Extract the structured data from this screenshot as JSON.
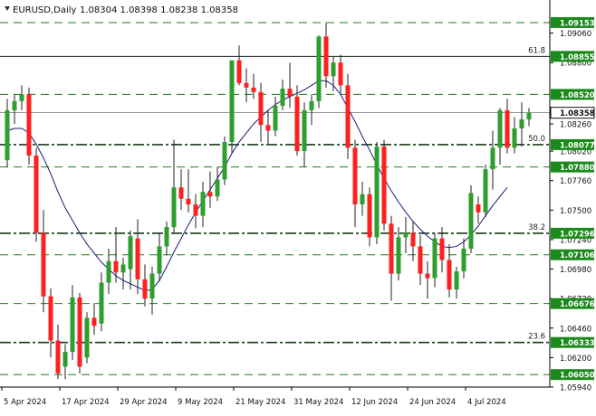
{
  "header": {
    "symbol": "EURUSD,Daily",
    "ohlc": "1.08304 1.08398 1.08238 1.08358"
  },
  "colors": {
    "bull": "#2e9e2e",
    "bear": "#ff1f1f",
    "wick": "#222222",
    "ma": "#1a1a7a",
    "level_dash": "#1e7a1e",
    "price_box": "#1a8a1a"
  },
  "chart_data": {
    "type": "candlestick",
    "title": "EURUSD,Daily",
    "ylim": [
      1.0594,
      1.0932
    ],
    "y_ticks": [
      "1.09060",
      "1.08800",
      "1.08260",
      "1.08020",
      "1.07760",
      "1.07500",
      "1.07240",
      "1.06980",
      "1.06720",
      "1.06460",
      "1.06200",
      "1.05940"
    ],
    "x_ticks": [
      {
        "label": "5 Apr 2024",
        "index": 0
      },
      {
        "label": "17 Apr 2024",
        "index": 8
      },
      {
        "label": "29 Apr 2024",
        "index": 16
      },
      {
        "label": "9 May 2024",
        "index": 24
      },
      {
        "label": "21 May 2024",
        "index": 32
      },
      {
        "label": "31 May 2024",
        "index": 40
      },
      {
        "label": "12 Jun 2024",
        "index": 48
      },
      {
        "label": "24 Jun 2024",
        "index": 56
      },
      {
        "label": "4 Jul 2024",
        "index": 64
      }
    ],
    "levels": [
      {
        "label": "1.09153",
        "value": 1.09153,
        "style": "dash"
      },
      {
        "label": "1.08855",
        "value": 1.08855,
        "style": "solid",
        "fib": "61.8"
      },
      {
        "label": "1.08520",
        "value": 1.0852,
        "style": "dash"
      },
      {
        "label": "1.08358",
        "value": 1.08358,
        "style": "current"
      },
      {
        "label": "1.08077",
        "value": 1.08077,
        "style": "dashdot",
        "fib": "50.0"
      },
      {
        "label": "1.07880",
        "value": 1.0788,
        "style": "dash"
      },
      {
        "label": "1.07296",
        "value": 1.07296,
        "style": "dashdot",
        "fib": "38.2"
      },
      {
        "label": "1.07106",
        "value": 1.07106,
        "style": "dash"
      },
      {
        "label": "1.06676",
        "value": 1.06676,
        "style": "dash"
      },
      {
        "label": "1.06333",
        "value": 1.06333,
        "style": "dashdot",
        "fib": "23.6"
      },
      {
        "label": "1.06050",
        "value": 1.0605,
        "style": "dash"
      }
    ],
    "candles": [
      [
        1.0794,
        1.0848,
        1.0788,
        1.0838
      ],
      [
        1.0838,
        1.0852,
        1.0826,
        1.0846
      ],
      [
        1.0846,
        1.086,
        1.0838,
        1.0852
      ],
      [
        1.0852,
        1.0858,
        1.079,
        1.0798
      ],
      [
        1.0798,
        1.0805,
        1.0722,
        1.073
      ],
      [
        1.073,
        1.075,
        1.066,
        1.0674
      ],
      [
        1.0674,
        1.0681,
        1.062,
        1.0635
      ],
      [
        1.0635,
        1.0649,
        1.0601,
        1.0606
      ],
      [
        1.0612,
        1.0632,
        1.0601,
        1.0625
      ],
      [
        1.0625,
        1.0684,
        1.0618,
        1.0673
      ],
      [
        1.0673,
        1.0677,
        1.0606,
        1.0612
      ],
      [
        1.062,
        1.066,
        1.0615,
        1.0655
      ],
      [
        1.0655,
        1.0668,
        1.064,
        1.0648
      ],
      [
        1.065,
        1.0695,
        1.0643,
        1.0686
      ],
      [
        1.0686,
        1.0716,
        1.0676,
        1.0705
      ],
      [
        1.0705,
        1.0735,
        1.0686,
        1.0695
      ],
      [
        1.0695,
        1.0708,
        1.068,
        1.0702
      ],
      [
        1.0698,
        1.0732,
        1.068,
        1.0727
      ],
      [
        1.0725,
        1.0742,
        1.0676,
        1.0689
      ],
      [
        1.0689,
        1.0702,
        1.0665,
        1.0672
      ],
      [
        1.0672,
        1.07,
        1.0658,
        1.0694
      ],
      [
        1.0694,
        1.073,
        1.0687,
        1.0718
      ],
      [
        1.0718,
        1.074,
        1.071,
        1.0735
      ],
      [
        1.0735,
        1.0812,
        1.073,
        1.077
      ],
      [
        1.077,
        1.0786,
        1.075,
        1.076
      ],
      [
        1.076,
        1.0786,
        1.0748,
        1.0755
      ],
      [
        1.0755,
        1.0764,
        1.0734,
        1.0745
      ],
      [
        1.0745,
        1.0775,
        1.0735,
        1.0766
      ],
      [
        1.0766,
        1.0784,
        1.0752,
        1.0762
      ],
      [
        1.0762,
        1.0788,
        1.0758,
        1.0777
      ],
      [
        1.0777,
        1.0815,
        1.0772,
        1.081
      ],
      [
        1.081,
        1.0882,
        1.08,
        1.0882
      ],
      [
        1.0882,
        1.0895,
        1.086,
        1.0862
      ],
      [
        1.0862,
        1.0875,
        1.0845,
        1.0858
      ],
      [
        1.0858,
        1.087,
        1.0848,
        1.0854
      ],
      [
        1.0854,
        1.0862,
        1.081,
        1.0825
      ],
      [
        1.0825,
        1.0838,
        1.0808,
        1.082
      ],
      [
        1.082,
        1.085,
        1.0815,
        1.0842
      ],
      [
        1.0842,
        1.0865,
        1.0838,
        1.0857
      ],
      [
        1.0857,
        1.088,
        1.084,
        1.085
      ],
      [
        1.085,
        1.086,
        1.0798,
        1.0802
      ],
      [
        1.0802,
        1.0845,
        1.0788,
        1.0838
      ],
      [
        1.0838,
        1.0852,
        1.0825,
        1.0846
      ],
      [
        1.0846,
        1.0904,
        1.084,
        1.0903
      ],
      [
        1.0903,
        1.0915,
        1.0858,
        1.0868
      ],
      [
        1.0868,
        1.0885,
        1.0855,
        1.088
      ],
      [
        1.088,
        1.0887,
        1.0853,
        1.086
      ],
      [
        1.086,
        1.087,
        1.0795,
        1.0805
      ],
      [
        1.0805,
        1.0812,
        1.0735,
        1.0755
      ],
      [
        1.0755,
        1.0775,
        1.0745,
        1.0764
      ],
      [
        1.0764,
        1.077,
        1.0718,
        1.0726
      ],
      [
        1.0726,
        1.081,
        1.072,
        1.0806
      ],
      [
        1.0806,
        1.0812,
        1.0732,
        1.0738
      ],
      [
        1.0738,
        1.0745,
        1.067,
        1.0694
      ],
      [
        1.0694,
        1.0735,
        1.0688,
        1.0726
      ],
      [
        1.0726,
        1.0744,
        1.0712,
        1.073
      ],
      [
        1.073,
        1.074,
        1.0705,
        1.0718
      ],
      [
        1.0718,
        1.0728,
        1.0684,
        1.0694
      ],
      [
        1.0694,
        1.0705,
        1.0672,
        1.069
      ],
      [
        1.069,
        1.073,
        1.0682,
        1.0725
      ],
      [
        1.0725,
        1.0735,
        1.0695,
        1.0706
      ],
      [
        1.0706,
        1.072,
        1.0673,
        1.068
      ],
      [
        1.068,
        1.07,
        1.0672,
        1.0696
      ],
      [
        1.0696,
        1.0725,
        1.069,
        1.0716
      ],
      [
        1.0716,
        1.0772,
        1.0712,
        1.0765
      ],
      [
        1.0755,
        1.0762,
        1.0738,
        1.0748
      ],
      [
        1.0748,
        1.079,
        1.0744,
        1.0786
      ],
      [
        1.0786,
        1.082,
        1.0768,
        1.0805
      ],
      [
        1.0805,
        1.084,
        1.079,
        1.0838
      ],
      [
        1.0838,
        1.0848,
        1.08,
        1.0805
      ],
      [
        1.0805,
        1.0832,
        1.08,
        1.0822
      ],
      [
        1.0822,
        1.0845,
        1.0806,
        1.083
      ],
      [
        1.083,
        1.084,
        1.0824,
        1.0836
      ]
    ],
    "ma": [
      1.082,
      1.0822,
      1.0822,
      1.0818,
      1.0808,
      1.0796,
      1.0782,
      1.0766,
      1.0752,
      1.0741,
      1.073,
      1.072,
      1.0712,
      1.0704,
      1.0698,
      1.0692,
      1.0688,
      1.0685,
      1.0682,
      1.0679,
      1.068,
      1.0688,
      1.07,
      1.0713,
      1.0725,
      1.0737,
      1.0748,
      1.0758,
      1.0768,
      1.0778,
      1.0788,
      1.08,
      1.081,
      1.0818,
      1.0826,
      1.0832,
      1.0838,
      1.0843,
      1.0847,
      1.085,
      1.0853,
      1.0856,
      1.086,
      1.0864,
      1.0864,
      1.086,
      1.0852,
      1.084,
      1.0828,
      1.0815,
      1.0803,
      1.079,
      1.0778,
      1.0767,
      1.0757,
      1.0748,
      1.074,
      1.0733,
      1.0727,
      1.0722,
      1.0718,
      1.0717,
      1.0718,
      1.0722,
      1.0728,
      1.0736,
      1.0745,
      1.0754,
      1.0762,
      1.077
    ]
  }
}
